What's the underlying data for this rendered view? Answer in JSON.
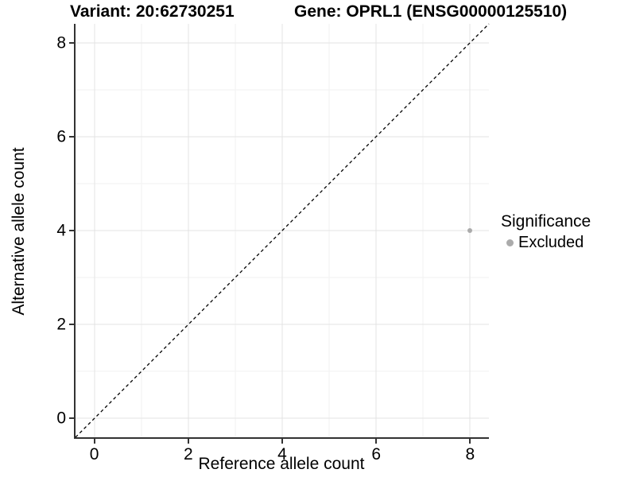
{
  "chart_data": {
    "type": "scatter",
    "titles": {
      "left": "Variant: 20:62730251",
      "right": "Gene: OPRL1 (ENSG00000125510)"
    },
    "xlabel": "Reference allele count",
    "ylabel": "Alternative allele count",
    "xlim": [
      -0.4,
      8.4
    ],
    "ylim": [
      -0.4,
      8.4
    ],
    "x_ticks": [
      0,
      2,
      4,
      6,
      8
    ],
    "y_ticks": [
      0,
      2,
      4,
      6,
      8
    ],
    "x_minor_ticks": [
      1,
      3,
      5,
      7
    ],
    "y_minor_ticks": [
      1,
      3,
      5,
      7
    ],
    "grid": "major and minor gridlines, white background",
    "reference_line": {
      "shape": "diagonal",
      "equation": "y = x",
      "style": "dashed",
      "color": "#000000"
    },
    "points": [
      {
        "x": 8,
        "y": 4,
        "significance": "Excluded"
      }
    ],
    "legend": {
      "title": "Significance",
      "position": "right",
      "items": [
        {
          "label": "Excluded",
          "marker": "circle",
          "color": "#ababab"
        }
      ]
    },
    "style": {
      "background": "#ffffff",
      "axis_line_color": "#333333",
      "grid_major_color": "#e3e3e3",
      "grid_minor_color": "#f2f2f2",
      "point_color": "#ababab",
      "text_color": "#000000"
    }
  }
}
